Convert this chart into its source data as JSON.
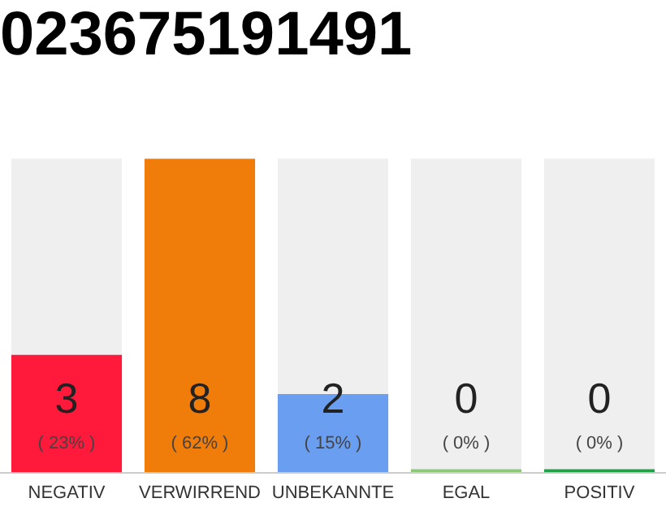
{
  "chart_data": {
    "type": "bar",
    "title": "023675191491",
    "categories": [
      "NEGATIV",
      "VERWIRREND",
      "UNBEKANNTE",
      "EGAL",
      "POSITIV"
    ],
    "values": [
      3,
      8,
      2,
      0,
      0
    ],
    "colors": [
      "#ff1a3c",
      "#f07c0a",
      "#6a9ef0",
      "#8cc878",
      "#22a046"
    ],
    "value_labels": [
      "3",
      "8",
      "2",
      "0",
      "0"
    ],
    "annotations": [
      "( 23% )",
      "( 62% )",
      "( 15% )",
      "( 0% )",
      "( 0% )"
    ],
    "grid": false,
    "legend": false
  }
}
